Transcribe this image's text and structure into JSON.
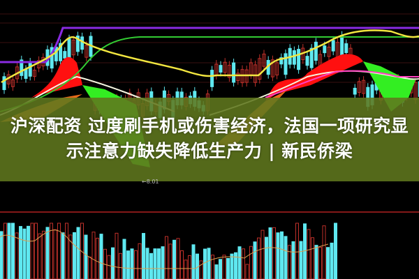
{
  "article": {
    "title_line1": "沪深配资 过度刷手机或伤害经济，法国一项研究显",
    "title_line2": "示注意力缺失降低生产力 | 新民侨梁"
  },
  "chart": {
    "price_annotation": "←8.01",
    "colors": {
      "background": "#000000",
      "overlay_band": "#60781e",
      "up_candle": "#c0302a",
      "down_candle": "#5fe8f0",
      "ma_yellow": "#f2e640",
      "ma_purple": "#8a2be2",
      "ma_green": "#33cc33",
      "ribbon_red": "#ff1010",
      "ribbon_green": "#33ee22",
      "ribbon_orange": "#e86a1a"
    }
  }
}
